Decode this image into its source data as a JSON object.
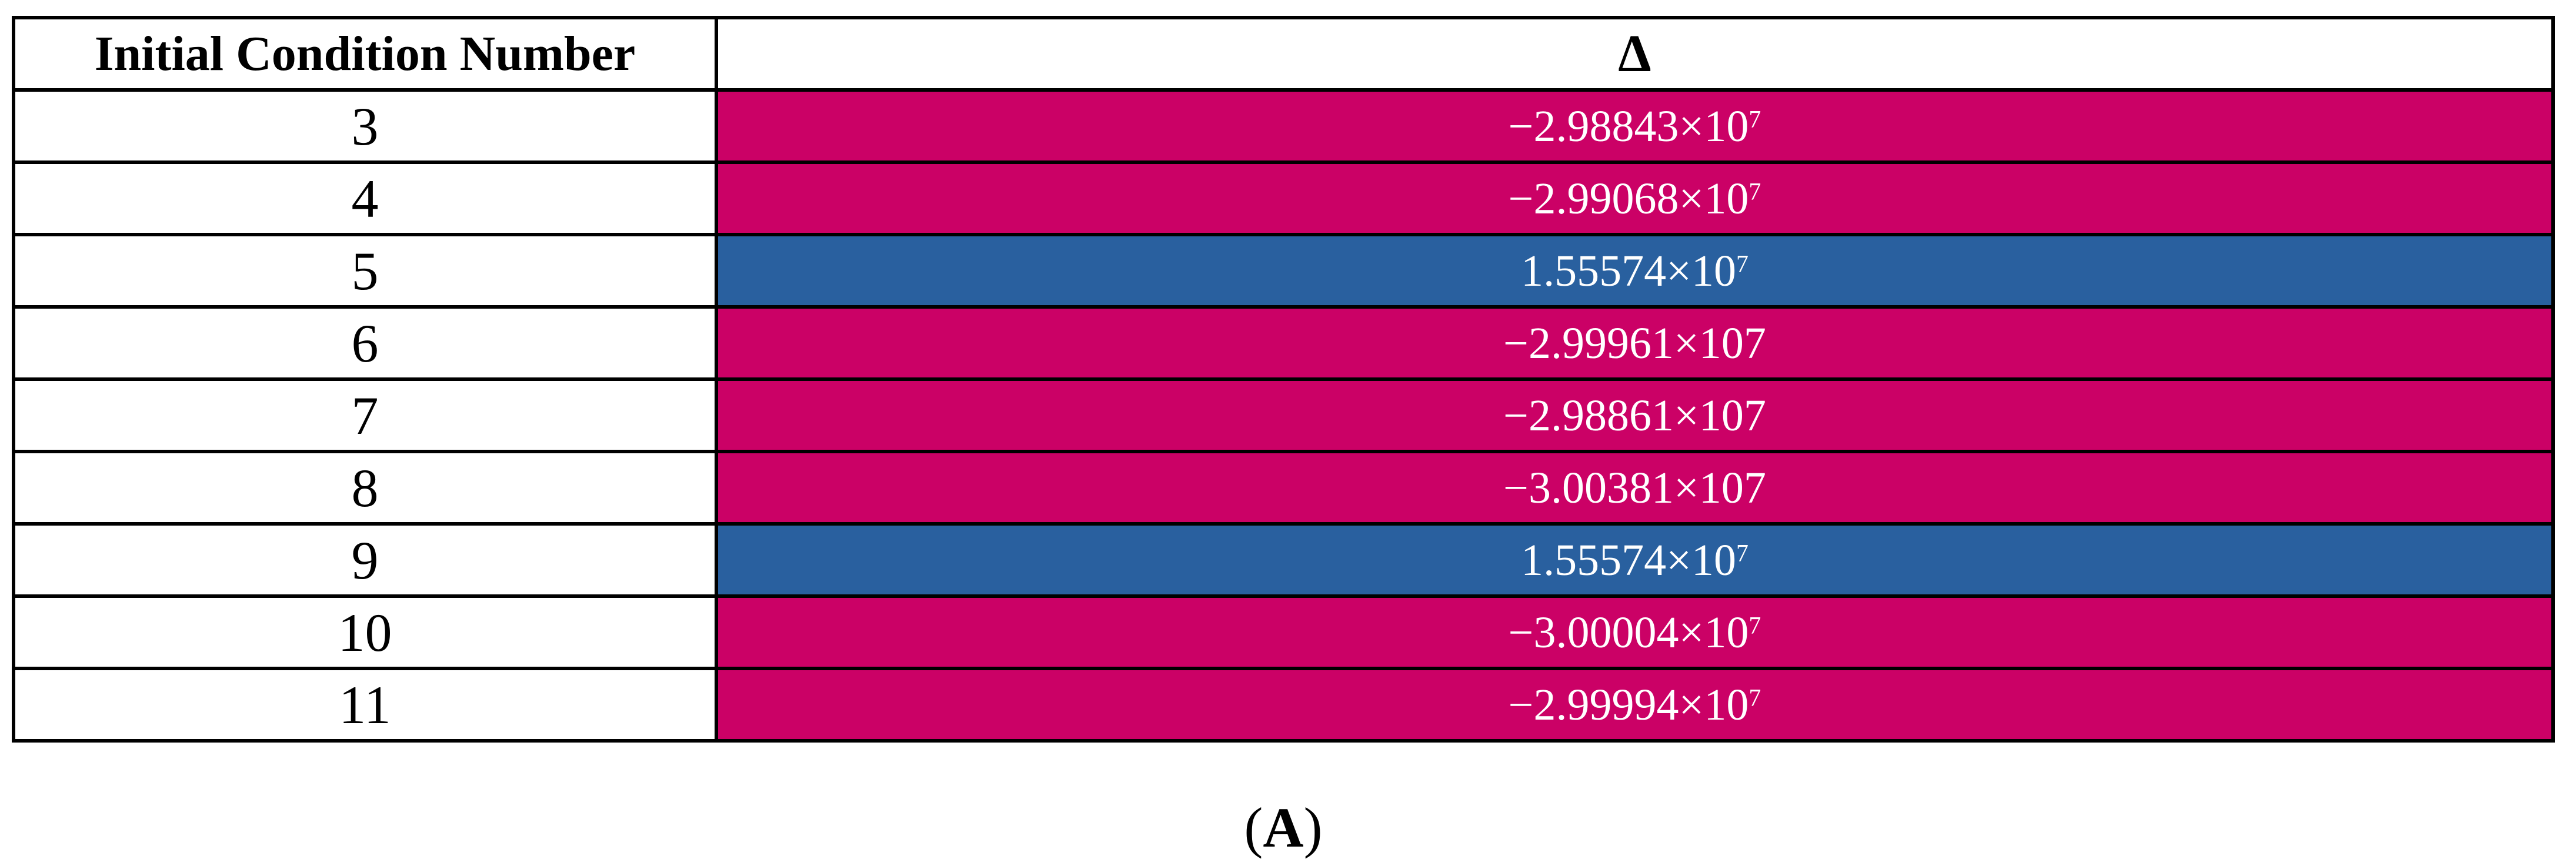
{
  "table": {
    "columns": [
      {
        "label": "Initial Condition Number"
      },
      {
        "label": "Δ"
      }
    ],
    "rows": [
      {
        "initial_condition": "3",
        "delta_base": "−2.98843×10",
        "delta_sup": "7",
        "highlight": "pink"
      },
      {
        "initial_condition": "4",
        "delta_base": "−2.99068×10",
        "delta_sup": "7",
        "highlight": "pink"
      },
      {
        "initial_condition": "5",
        "delta_base": "1.55574×10",
        "delta_sup": "7",
        "highlight": "blue"
      },
      {
        "initial_condition": "6",
        "delta_base": "−2.99961×107",
        "delta_sup": "",
        "highlight": "pink"
      },
      {
        "initial_condition": "7",
        "delta_base": "−2.98861×107",
        "delta_sup": "",
        "highlight": "pink"
      },
      {
        "initial_condition": "8",
        "delta_base": "−3.00381×107",
        "delta_sup": "",
        "highlight": "pink"
      },
      {
        "initial_condition": "9",
        "delta_base": "1.55574×10",
        "delta_sup": "7",
        "highlight": "blue"
      },
      {
        "initial_condition": "10",
        "delta_base": "−3.00004×10",
        "delta_sup": "7",
        "highlight": "pink"
      },
      {
        "initial_condition": "11",
        "delta_base": "−2.99994×10",
        "delta_sup": "7",
        "highlight": "pink"
      }
    ]
  },
  "caption": {
    "prefix": "(",
    "label": "A",
    "suffix": ")"
  },
  "colors": {
    "highlight_pink": "#CB0166",
    "highlight_blue": "#29609F",
    "border": "#000000",
    "value_text": "#FFFFFF",
    "header_text": "#000000",
    "background": "#FFFFFF"
  }
}
